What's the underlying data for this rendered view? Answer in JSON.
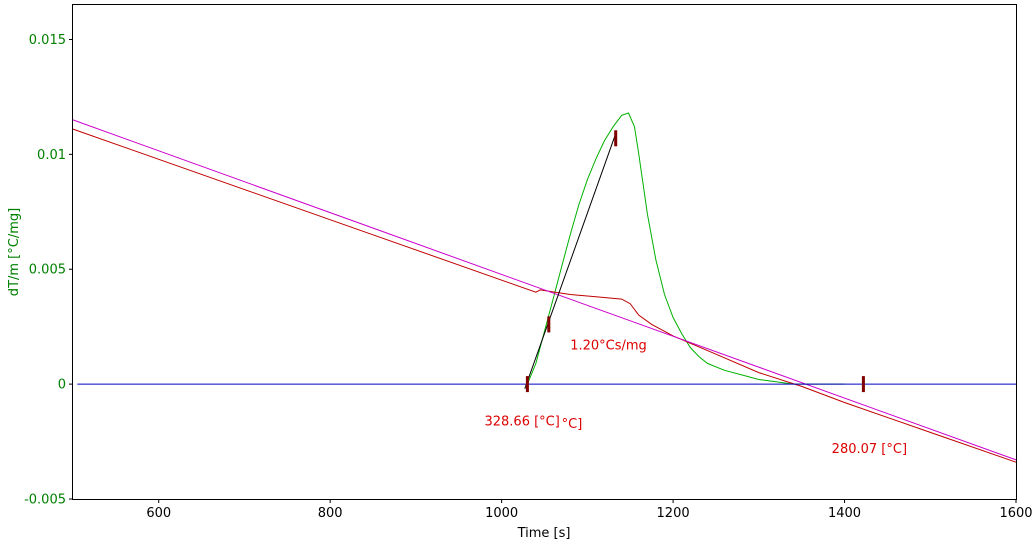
{
  "chart_data": {
    "type": "line",
    "xlabel": "Time [s]",
    "ylabel": "dT/m  [°C/mg]",
    "xlim": [
      500,
      1600
    ],
    "ylim": [
      -0.005,
      0.0165
    ],
    "x_ticks": [
      600,
      800,
      1000,
      1200,
      1400,
      1600
    ],
    "y_ticks": [
      -0.005,
      0,
      0.005,
      0.01,
      0.015
    ],
    "x_tick_labels": [
      "600",
      "800",
      "1000",
      "1200",
      "1400",
      "1600"
    ],
    "y_tick_labels": [
      "-0.005",
      "0",
      "0.005",
      "0.01",
      "0.015"
    ],
    "grid": false,
    "colors": {
      "axis_text_y": "#008000",
      "axis_text_x": "#000000",
      "green_curve": "#00b000",
      "red_curve": "#c00000",
      "magenta_line": "#cc00cc",
      "blue_baseline": "#0000c0",
      "tangent": "#000000",
      "marker": "#800000",
      "annotation": "#dd0000"
    },
    "series": [
      {
        "color": "#00b000",
        "points": [
          [
            1030,
            0.0
          ],
          [
            1040,
            0.0009
          ],
          [
            1050,
            0.0023
          ],
          [
            1060,
            0.0037
          ],
          [
            1070,
            0.0051
          ],
          [
            1080,
            0.0065
          ],
          [
            1090,
            0.0078
          ],
          [
            1100,
            0.0089
          ],
          [
            1110,
            0.0098
          ],
          [
            1120,
            0.0106
          ],
          [
            1130,
            0.0112
          ],
          [
            1140,
            0.0117
          ],
          [
            1148,
            0.0118
          ],
          [
            1155,
            0.0112
          ],
          [
            1160,
            0.01
          ],
          [
            1165,
            0.0087
          ],
          [
            1170,
            0.0074
          ],
          [
            1180,
            0.0054
          ],
          [
            1190,
            0.0039
          ],
          [
            1200,
            0.0029
          ],
          [
            1210,
            0.0022
          ],
          [
            1220,
            0.0016
          ],
          [
            1230,
            0.0012
          ],
          [
            1240,
            0.0009
          ],
          [
            1260,
            0.0006
          ],
          [
            1280,
            0.0004
          ],
          [
            1300,
            0.0002
          ],
          [
            1320,
            0.0001
          ],
          [
            1340,
            0.0
          ],
          [
            1400,
            0.0
          ]
        ]
      },
      {
        "color": "#c00000",
        "points": [
          [
            500,
            0.0111
          ],
          [
            1040,
            0.004
          ],
          [
            1045,
            0.0041
          ],
          [
            1080,
            0.0039
          ],
          [
            1110,
            0.0038
          ],
          [
            1140,
            0.0037
          ],
          [
            1150,
            0.0035
          ],
          [
            1160,
            0.003
          ],
          [
            1175,
            0.0026
          ],
          [
            1200,
            0.0021
          ],
          [
            1250,
            0.0013
          ],
          [
            1300,
            0.0005
          ],
          [
            1350,
            -0.0001
          ],
          [
            1400,
            -0.0008
          ],
          [
            1500,
            -0.0021
          ],
          [
            1600,
            -0.0034
          ]
        ]
      },
      {
        "color": "#cc00cc",
        "points": [
          [
            500,
            0.0115
          ],
          [
            1600,
            -0.0033
          ]
        ]
      },
      {
        "color": "#0000c0",
        "points": [
          [
            505,
            0.0
          ],
          [
            1600,
            0.0
          ]
        ]
      },
      {
        "color": "#000000",
        "points": [
          [
            1027,
            -0.0002
          ],
          [
            1133,
            0.0109
          ]
        ]
      }
    ],
    "markers": [
      [
        1030,
        0.0
      ],
      [
        1055,
        0.0026
      ],
      [
        1133,
        0.0107
      ],
      [
        1422,
        0.0
      ]
    ],
    "annotations": [
      {
        "text": "1.20°Cs/mg",
        "x": 1080,
        "y": 0.0015
      },
      {
        "text": "328.66 [°C]",
        "x": 980,
        "y": -0.0018
      },
      {
        "text": "°C]",
        "x": 1070,
        "y": -0.0019
      },
      {
        "text": "280.07 [°C]",
        "x": 1385,
        "y": -0.003
      }
    ]
  }
}
